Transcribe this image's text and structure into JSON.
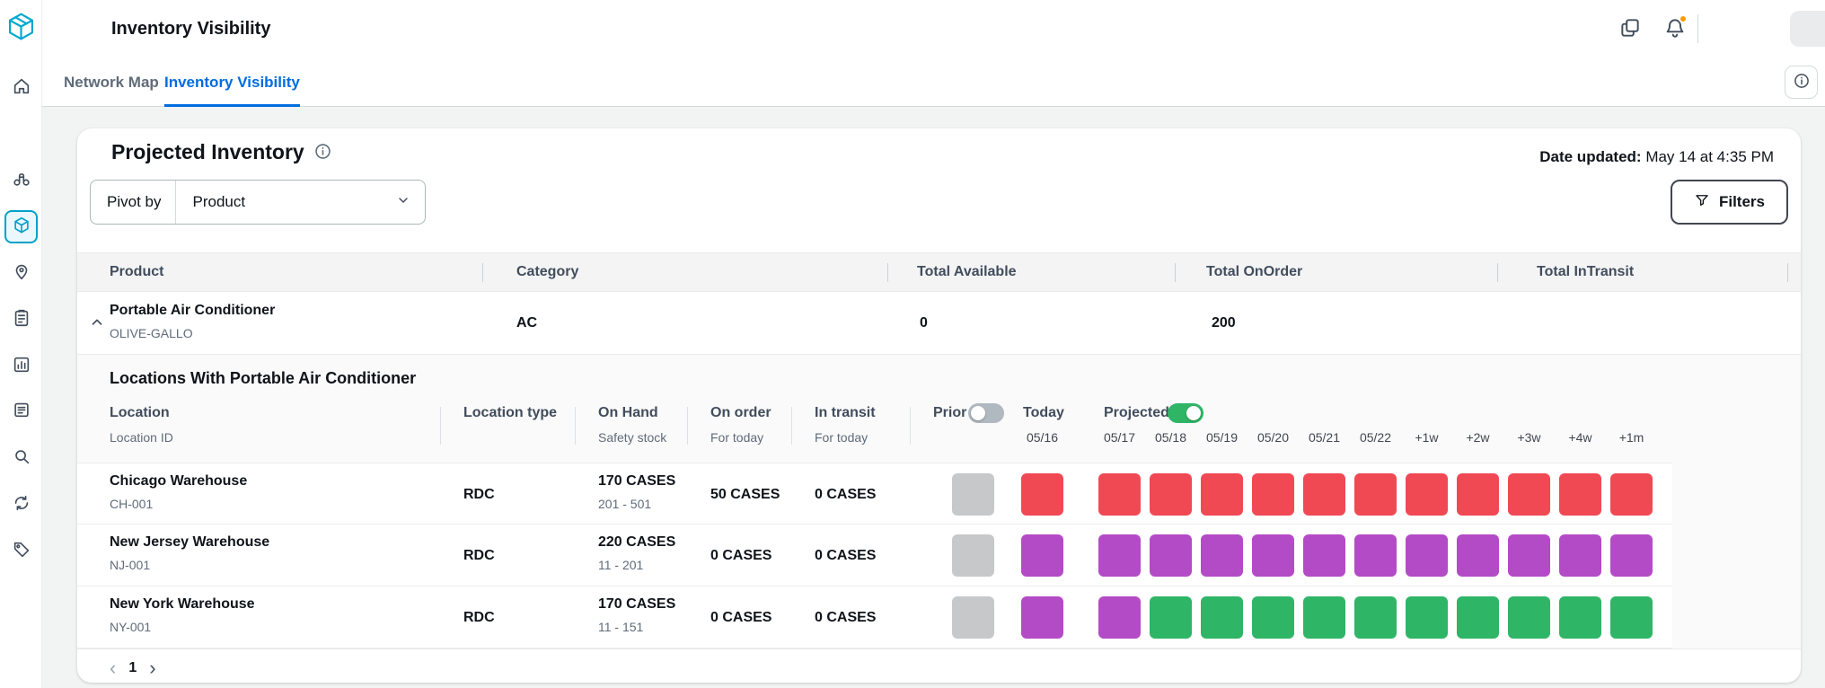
{
  "header": {
    "title": "Inventory Visibility"
  },
  "tabs": {
    "network_map": "Network Map",
    "inventory_visibility": "Inventory Visibility"
  },
  "page": {
    "title": "Projected Inventory",
    "date_updated_label": "Date updated:",
    "date_updated_value": "May 14 at 4:35 PM",
    "pivot_label": "Pivot by",
    "pivot_value": "Product",
    "filters_label": "Filters"
  },
  "product_table": {
    "headers": {
      "product": "Product",
      "category": "Category",
      "total_available": "Total Available",
      "total_onorder": "Total OnOrder",
      "total_intransit": "Total InTransit"
    },
    "row": {
      "name": "Portable Air Conditioner",
      "code": "OLIVE-GALLO",
      "category": "AC",
      "total_available": "0",
      "total_onorder": "200",
      "total_intransit": ""
    }
  },
  "locations": {
    "title": "Locations With Portable Air Conditioner",
    "headers": {
      "location": "Location",
      "location_id": "Location ID",
      "location_type": "Location type",
      "on_hand": "On Hand",
      "safety_stock": "Safety stock",
      "on_order": "On order",
      "on_order_sub": "For today",
      "in_transit": "In transit",
      "in_transit_sub": "For today",
      "prior": "Prior",
      "today": "Today",
      "today_date": "05/16",
      "projected": "Projected"
    },
    "date_headers": [
      "05/17",
      "05/18",
      "05/19",
      "05/20",
      "05/21",
      "05/22",
      "+1w",
      "+2w",
      "+3w",
      "+4w",
      "+1m"
    ],
    "rows": [
      {
        "name": "Chicago Warehouse",
        "id": "CH-001",
        "type": "RDC",
        "on_hand": "170 CASES",
        "safety_stock": "201 - 501",
        "on_order": "50 CASES",
        "in_transit": "0 CASES",
        "cells": [
          "gray",
          "red",
          "red",
          "red",
          "red",
          "red",
          "red",
          "red",
          "red",
          "red",
          "red",
          "red",
          "red"
        ]
      },
      {
        "name": "New Jersey Warehouse",
        "id": "NJ-001",
        "type": "RDC",
        "on_hand": "220 CASES",
        "safety_stock": "11 - 201",
        "on_order": "0 CASES",
        "in_transit": "0 CASES",
        "cells": [
          "gray",
          "purple",
          "purple",
          "purple",
          "purple",
          "purple",
          "purple",
          "purple",
          "purple",
          "purple",
          "purple",
          "purple",
          "purple"
        ]
      },
      {
        "name": "New York Warehouse",
        "id": "NY-001",
        "type": "RDC",
        "on_hand": "170 CASES",
        "safety_stock": "11 - 151",
        "on_order": "0 CASES",
        "in_transit": "0 CASES",
        "cells": [
          "gray",
          "purple",
          "purple",
          "green",
          "green",
          "green",
          "green",
          "green",
          "green",
          "green",
          "green",
          "green",
          "green"
        ]
      }
    ]
  },
  "pagination": {
    "prev": "‹",
    "current": "1",
    "next": "›"
  },
  "sidebar": {
    "icons": [
      "home",
      "binoculars",
      "package",
      "location-pin",
      "clipboard",
      "bar-chart",
      "news",
      "magnifier",
      "sync",
      "tag"
    ],
    "active_icon": "package"
  },
  "header_icons": [
    "copy",
    "bell-with-notification"
  ],
  "colors": {
    "red": "#f14954",
    "purple": "#b44bc6",
    "green": "#2fb566",
    "gray": "#c6c8ca",
    "accent_blue": "#006ce0",
    "brand_teal": "#00a8cf",
    "toggle_on": "#2fb566",
    "notification_orange": "#ff9900"
  }
}
